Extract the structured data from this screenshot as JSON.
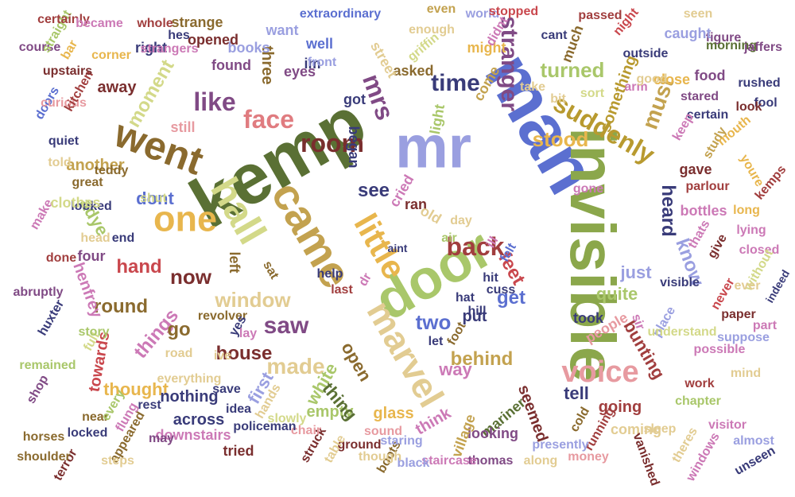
{
  "palette": [
    "#5b6fd0",
    "#9a9fe0",
    "#5a7034",
    "#a9c76a",
    "#e8b64d",
    "#c3a24f",
    "#c9474d",
    "#e79aa0",
    "#7a2e2e",
    "#804a85",
    "#cc79b6",
    "#e2cc92",
    "#8a6a2e",
    "#393b79",
    "#d3d989"
  ],
  "words": [
    {
      "text": "kemp",
      "color": "#5a7034"
    },
    {
      "text": "man",
      "color": "#5b6fd0"
    },
    {
      "text": "invisible",
      "color": "#8ba74b"
    },
    {
      "text": "mr",
      "color": "#9a9fe0"
    },
    {
      "text": "door",
      "color": "#a9c76a"
    },
    {
      "text": "came",
      "color": "#c3a24f"
    },
    {
      "text": "hall",
      "color": "#d3d989"
    },
    {
      "text": "went",
      "color": "#8a6a2e"
    },
    {
      "text": "one",
      "color": "#e8b64d"
    },
    {
      "text": "marvel",
      "color": "#e2cc92"
    },
    {
      "text": "little",
      "color": "#e8b64d"
    },
    {
      "text": "face",
      "color": "#e07c80"
    },
    {
      "text": "room",
      "color": "#7a2e2e"
    },
    {
      "text": "voice",
      "color": "#e79aa0"
    },
    {
      "text": "like",
      "color": "#804a85"
    },
    {
      "text": "suddenly",
      "color": "#b89a2f"
    },
    {
      "text": "stranger",
      "color": "#804a85"
    },
    {
      "text": "mrs",
      "color": "#804a85"
    },
    {
      "text": "back",
      "color": "#a13e3e"
    },
    {
      "text": "saw",
      "color": "#804a85"
    },
    {
      "text": "time",
      "color": "#393b79"
    },
    {
      "text": "window",
      "color": "#e2cc92"
    },
    {
      "text": "made",
      "color": "#e2cc92"
    },
    {
      "text": "house",
      "color": "#7a2e2e"
    },
    {
      "text": "heard",
      "color": "#393b79"
    },
    {
      "text": "must",
      "color": "#c3a24f"
    },
    {
      "text": "dont",
      "color": "#5b6fd0"
    },
    {
      "text": "now",
      "color": "#7a2e2e"
    },
    {
      "text": "turned",
      "color": "#a9c76a"
    },
    {
      "text": "moment",
      "color": "#d3d989"
    },
    {
      "text": "something",
      "color": "#b89a2f"
    },
    {
      "text": "stood",
      "color": "#e8b64d"
    },
    {
      "text": "know",
      "color": "#9a9fe0"
    },
    {
      "text": "two",
      "color": "#5b6fd0"
    },
    {
      "text": "get",
      "color": "#5b6fd0"
    },
    {
      "text": "things",
      "color": "#cc79b6"
    },
    {
      "text": "round",
      "color": "#8a6a2e"
    },
    {
      "text": "feet",
      "color": "#c9474d"
    },
    {
      "text": "first",
      "color": "#9a9fe0"
    },
    {
      "text": "hand",
      "color": "#c9474d"
    },
    {
      "text": "bunting",
      "color": "#a13e3e"
    },
    {
      "text": "white",
      "color": "#a9c76a"
    },
    {
      "text": "put",
      "color": "#393b79"
    },
    {
      "text": "behind",
      "color": "#c3a24f"
    },
    {
      "text": "see",
      "color": "#393b79"
    },
    {
      "text": "quite",
      "color": "#a9c76a"
    },
    {
      "text": "just",
      "color": "#9a9fe0"
    },
    {
      "text": "open",
      "color": "#8a6a2e"
    },
    {
      "text": "went",
      "color": "#8a6a2e"
    },
    {
      "text": "got",
      "color": "#393b79"
    },
    {
      "text": "began",
      "color": "#393b79"
    },
    {
      "text": "asked",
      "color": "#8a6a2e"
    },
    {
      "text": "street",
      "color": "#e2cc92"
    },
    {
      "text": "three",
      "color": "#8a6a2e"
    },
    {
      "text": "found",
      "color": "#804a85"
    },
    {
      "text": "books",
      "color": "#9a9fe0"
    },
    {
      "text": "still",
      "color": "#e79aa0"
    },
    {
      "text": "another",
      "color": "#c3a24f"
    },
    {
      "text": "away",
      "color": "#7a2e2e"
    },
    {
      "text": "people",
      "color": "#e79aa0"
    },
    {
      "text": "took",
      "color": "#393b79"
    },
    {
      "text": "go",
      "color": "#8a6a2e"
    },
    {
      "text": "tell",
      "color": "#393b79"
    },
    {
      "text": "way",
      "color": "#cc79b6"
    },
    {
      "text": "towards",
      "color": "#c9474d"
    },
    {
      "text": "thought",
      "color": "#e8b64d"
    },
    {
      "text": "nothing",
      "color": "#393b79"
    },
    {
      "text": "across",
      "color": "#393b79"
    },
    {
      "text": "henfrey",
      "color": "#cc79b6"
    },
    {
      "text": "mariner",
      "color": "#5a7034"
    },
    {
      "text": "seemed",
      "color": "#7a2e2e"
    },
    {
      "text": "going",
      "color": "#a13e3e"
    },
    {
      "text": "glass",
      "color": "#e8b64d"
    },
    {
      "text": "empty",
      "color": "#a9c76a"
    },
    {
      "text": "thing",
      "color": "#5a7034"
    },
    {
      "text": "downstairs",
      "color": "#cc79b6"
    },
    {
      "text": "looking",
      "color": "#804a85"
    },
    {
      "text": "village",
      "color": "#c3a24f"
    },
    {
      "text": "think",
      "color": "#cc79b6"
    },
    {
      "text": "adye",
      "color": "#a9c76a"
    },
    {
      "text": "left",
      "color": "#8a6a2e"
    },
    {
      "text": "cried",
      "color": "#cc79b6"
    },
    {
      "text": "ran",
      "color": "#7a2e2e"
    },
    {
      "text": "old",
      "color": "#e2cc92"
    },
    {
      "text": "light",
      "color": "#a9c76a"
    },
    {
      "text": "come",
      "color": "#c3a24f"
    },
    {
      "text": "might",
      "color": "#e8b64d"
    },
    {
      "text": "right",
      "color": "#393b79"
    },
    {
      "text": "well",
      "color": "#5b6fd0"
    },
    {
      "text": "im",
      "color": "#393b79"
    },
    {
      "text": "eyes",
      "color": "#804a85"
    },
    {
      "text": "want",
      "color": "#9a9fe0"
    },
    {
      "text": "opened",
      "color": "#7a2e2e"
    },
    {
      "text": "strange",
      "color": "#8a6a2e"
    },
    {
      "text": "extraordinary",
      "color": "#5b6fd0"
    },
    {
      "text": "enough",
      "color": "#e2cc92"
    },
    {
      "text": "griffin",
      "color": "#d3d989"
    },
    {
      "text": "even",
      "color": "#c3a24f"
    },
    {
      "text": "world",
      "color": "#9a9fe0"
    },
    {
      "text": "didnt",
      "color": "#cc79b6"
    },
    {
      "text": "stopped",
      "color": "#c9474d"
    },
    {
      "text": "much",
      "color": "#8a6a2e"
    },
    {
      "text": "passed",
      "color": "#a13e3e"
    },
    {
      "text": "night",
      "color": "#c9474d"
    },
    {
      "text": "seen",
      "color": "#e2cc92"
    },
    {
      "text": "figure",
      "color": "#804a85"
    },
    {
      "text": "caught",
      "color": "#9a9fe0"
    },
    {
      "text": "morning",
      "color": "#5a7034"
    },
    {
      "text": "jaffers",
      "color": "#804a85"
    },
    {
      "text": "outside",
      "color": "#393b79"
    },
    {
      "text": "close",
      "color": "#e8b64d"
    },
    {
      "text": "food",
      "color": "#804a85"
    },
    {
      "text": "rushed",
      "color": "#393b79"
    },
    {
      "text": "fool",
      "color": "#393b79"
    },
    {
      "text": "stared",
      "color": "#804a85"
    },
    {
      "text": "look",
      "color": "#7a2e2e"
    },
    {
      "text": "certain",
      "color": "#393b79"
    },
    {
      "text": "cant",
      "color": "#393b79"
    },
    {
      "text": "bit",
      "color": "#e2cc92"
    },
    {
      "text": "take",
      "color": "#e2cc92"
    },
    {
      "text": "arm",
      "color": "#cc79b6"
    },
    {
      "text": "good",
      "color": "#e2cc92"
    },
    {
      "text": "keep",
      "color": "#cc79b6"
    },
    {
      "text": "study",
      "color": "#c3a24f"
    },
    {
      "text": "mouth",
      "color": "#e8b64d"
    },
    {
      "text": "youre",
      "color": "#e8b64d"
    },
    {
      "text": "kemps",
      "color": "#a13e3e"
    },
    {
      "text": "gave",
      "color": "#7a2e2e"
    },
    {
      "text": "parlour",
      "color": "#a13e3e"
    },
    {
      "text": "bottles",
      "color": "#cc79b6"
    },
    {
      "text": "long",
      "color": "#e8b64d"
    },
    {
      "text": "lying",
      "color": "#cc79b6"
    },
    {
      "text": "thats",
      "color": "#cc79b6"
    },
    {
      "text": "give",
      "color": "#7a2e2e"
    },
    {
      "text": "closed",
      "color": "#cc79b6"
    },
    {
      "text": "without",
      "color": "#d3d989"
    },
    {
      "text": "ever",
      "color": "#e2cc92"
    },
    {
      "text": "indeed",
      "color": "#393b79"
    },
    {
      "text": "never",
      "color": "#c9474d"
    },
    {
      "text": "visible",
      "color": "#393b79"
    },
    {
      "text": "paper",
      "color": "#7a2e2e"
    },
    {
      "text": "suppose",
      "color": "#9a9fe0"
    },
    {
      "text": "part",
      "color": "#cc79b6"
    },
    {
      "text": "place",
      "color": "#9a9fe0"
    },
    {
      "text": "understand",
      "color": "#d3d989"
    },
    {
      "text": "possible",
      "color": "#cc79b6"
    },
    {
      "text": "sir",
      "color": "#cc79b6"
    },
    {
      "text": "work",
      "color": "#a13e3e"
    },
    {
      "text": "mind",
      "color": "#e2cc92"
    },
    {
      "text": "chapter",
      "color": "#a9c76a"
    },
    {
      "text": "visitor",
      "color": "#cc79b6"
    },
    {
      "text": "almost",
      "color": "#9a9fe0"
    },
    {
      "text": "windows",
      "color": "#cc79b6"
    },
    {
      "text": "theres",
      "color": "#e2cc92"
    },
    {
      "text": "unseen",
      "color": "#393b79"
    },
    {
      "text": "coming",
      "color": "#e2cc92"
    },
    {
      "text": "sleep",
      "color": "#e2cc92"
    },
    {
      "text": "vanished",
      "color": "#7a2e2e"
    },
    {
      "text": "running",
      "color": "#a13e3e"
    },
    {
      "text": "money",
      "color": "#e79aa0"
    },
    {
      "text": "cold",
      "color": "#8a6a2e"
    },
    {
      "text": "presently",
      "color": "#9a9fe0"
    },
    {
      "text": "along",
      "color": "#e2cc92"
    },
    {
      "text": "thomas",
      "color": "#804a85"
    },
    {
      "text": "staircase",
      "color": "#cc79b6"
    },
    {
      "text": "black",
      "color": "#9a9fe0"
    },
    {
      "text": "boots",
      "color": "#8a6a2e"
    },
    {
      "text": "though",
      "color": "#e2cc92"
    },
    {
      "text": "ground",
      "color": "#7a2e2e"
    },
    {
      "text": "sound",
      "color": "#e79aa0"
    },
    {
      "text": "staring",
      "color": "#9a9fe0"
    },
    {
      "text": "table",
      "color": "#e2cc92"
    },
    {
      "text": "struck",
      "color": "#7a2e2e"
    },
    {
      "text": "slowly",
      "color": "#d3d989"
    },
    {
      "text": "chair",
      "color": "#e79aa0"
    },
    {
      "text": "tried",
      "color": "#7a2e2e"
    },
    {
      "text": "policeman",
      "color": "#393b79"
    },
    {
      "text": "idea",
      "color": "#393b79"
    },
    {
      "text": "hands",
      "color": "#e2cc92"
    },
    {
      "text": "may",
      "color": "#804a85"
    },
    {
      "text": "appeared",
      "color": "#8a6a2e"
    },
    {
      "text": "steps",
      "color": "#e2cc92"
    },
    {
      "text": "rest",
      "color": "#393b79"
    },
    {
      "text": "near",
      "color": "#8a6a2e"
    },
    {
      "text": "every",
      "color": "#a9c76a"
    },
    {
      "text": "locked",
      "color": "#393b79"
    },
    {
      "text": "terror",
      "color": "#7a2e2e"
    },
    {
      "text": "shoulder",
      "color": "#8a6a2e"
    },
    {
      "text": "horses",
      "color": "#8a6a2e"
    },
    {
      "text": "shop",
      "color": "#804a85"
    },
    {
      "text": "remained",
      "color": "#a9c76a"
    },
    {
      "text": "flung",
      "color": "#cc79b6"
    },
    {
      "text": "everything",
      "color": "#e2cc92"
    },
    {
      "text": "save",
      "color": "#393b79"
    },
    {
      "text": "full",
      "color": "#d3d989"
    },
    {
      "text": "story",
      "color": "#a9c76a"
    },
    {
      "text": "huxter",
      "color": "#393b79"
    },
    {
      "text": "abruptly",
      "color": "#804a85"
    },
    {
      "text": "revolver",
      "color": "#8a6a2e"
    },
    {
      "text": "yes",
      "color": "#393b79"
    },
    {
      "text": "lay",
      "color": "#cc79b6"
    },
    {
      "text": "ive",
      "color": "#e2cc92"
    },
    {
      "text": "road",
      "color": "#e2cc92"
    },
    {
      "text": "done",
      "color": "#a13e3e"
    },
    {
      "text": "four",
      "color": "#804a85"
    },
    {
      "text": "head",
      "color": "#e2cc92"
    },
    {
      "text": "looked",
      "color": "#393b79"
    },
    {
      "text": "make",
      "color": "#cc79b6"
    },
    {
      "text": "clothes",
      "color": "#d3d989"
    },
    {
      "text": "great",
      "color": "#8a6a2e"
    },
    {
      "text": "teddy",
      "color": "#8a6a2e"
    },
    {
      "text": "told",
      "color": "#e2cc92"
    },
    {
      "text": "quiet",
      "color": "#393b79"
    },
    {
      "text": "doors",
      "color": "#5b6fd0"
    },
    {
      "text": "curious",
      "color": "#e79aa0"
    },
    {
      "text": "kitchen",
      "color": "#a13e3e"
    },
    {
      "text": "upstairs",
      "color": "#7a2e2e"
    },
    {
      "text": "bar",
      "color": "#e8b64d"
    },
    {
      "text": "course",
      "color": "#804a85"
    },
    {
      "text": "straight",
      "color": "#a9c76a"
    },
    {
      "text": "certainly",
      "color": "#a13e3e"
    },
    {
      "text": "became",
      "color": "#cc79b6"
    },
    {
      "text": "corner",
      "color": "#e8b64d"
    },
    {
      "text": "whole",
      "color": "#a13e3e"
    },
    {
      "text": "hes",
      "color": "#393b79"
    },
    {
      "text": "strangers",
      "color": "#cc79b6"
    },
    {
      "text": "shut",
      "color": "#d3d989"
    },
    {
      "text": "end",
      "color": "#393b79"
    },
    {
      "text": "help",
      "color": "#393b79"
    },
    {
      "text": "last",
      "color": "#a13e3e"
    },
    {
      "text": "sat",
      "color": "#8a6a2e"
    },
    {
      "text": "cuss",
      "color": "#393b79"
    },
    {
      "text": "hill",
      "color": "#393b79"
    },
    {
      "text": "hat",
      "color": "#393b79"
    },
    {
      "text": "hit",
      "color": "#393b79"
    },
    {
      "text": "dr",
      "color": "#cc79b6"
    },
    {
      "text": "felt",
      "color": "#5b6fd0"
    },
    {
      "text": "ill",
      "color": "#cc79b6"
    },
    {
      "text": "air",
      "color": "#a9c76a"
    },
    {
      "text": "day",
      "color": "#e2cc92"
    },
    {
      "text": "let",
      "color": "#393b79"
    },
    {
      "text": "foot",
      "color": "#8a6a2e"
    },
    {
      "text": "gone",
      "color": "#cc79b6"
    },
    {
      "text": "front",
      "color": "#9a9fe0"
    },
    {
      "text": "sort",
      "color": "#d3d989"
    },
    {
      "text": "aint",
      "color": "#393b79"
    }
  ]
}
